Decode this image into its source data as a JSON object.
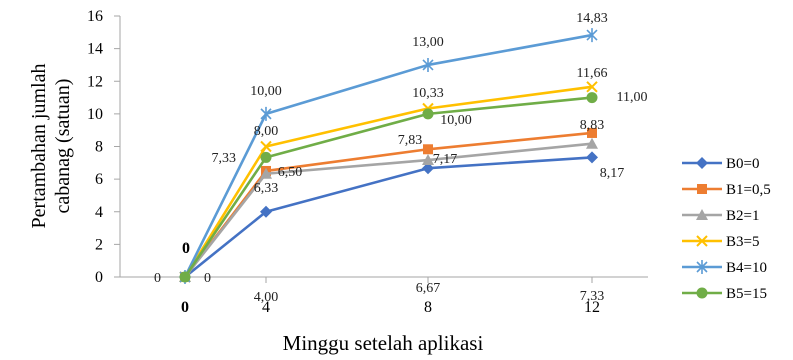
{
  "chart_data": {
    "type": "line",
    "title": "",
    "xlabel": "Minggu setelah aplikasi",
    "ylabel": "Pertambahan jumlah\ncabanag (satuan)",
    "x": [
      0,
      4,
      8,
      12
    ],
    "x_tick_labels": [
      "0",
      "4",
      "8",
      "12"
    ],
    "ylim": [
      0,
      16
    ],
    "y_ticks": [
      0,
      2,
      4,
      6,
      8,
      10,
      12,
      14,
      16
    ],
    "grid": false,
    "legend_position": "right",
    "series": [
      {
        "name": "B0=0",
        "color": "#4472C4",
        "marker": "diamond",
        "values": [
          0,
          4.0,
          6.67,
          7.33
        ],
        "labels": [
          "0",
          "4,00",
          "6,67",
          "7,33"
        ]
      },
      {
        "name": "B1=0,5",
        "color": "#ED7D31",
        "marker": "square",
        "values": [
          0,
          6.5,
          7.83,
          8.83
        ],
        "labels": [
          "0",
          "6,50",
          "7,83",
          "8,83"
        ]
      },
      {
        "name": "B2=1",
        "color": "#A5A5A5",
        "marker": "triangle",
        "values": [
          0,
          6.33,
          7.17,
          8.17
        ],
        "labels": [
          "",
          "6,33",
          "7,17",
          "8,17"
        ]
      },
      {
        "name": "B3=5",
        "color": "#FFC000",
        "marker": "x",
        "values": [
          0,
          8.0,
          10.33,
          11.66
        ],
        "labels": [
          "",
          "8,00",
          "10,33",
          "11,66"
        ]
      },
      {
        "name": "B4=10",
        "color": "#5B9BD5",
        "marker": "star",
        "values": [
          0,
          10.0,
          13.0,
          14.83
        ],
        "labels": [
          "",
          "10,00",
          "13,00",
          "14,83"
        ]
      },
      {
        "name": "B5=15",
        "color": "#70AD47",
        "marker": "circle",
        "values": [
          0,
          7.33,
          10.0,
          11.0
        ],
        "labels": [
          "0",
          "7,33",
          "10,00",
          "11,00"
        ]
      }
    ]
  }
}
